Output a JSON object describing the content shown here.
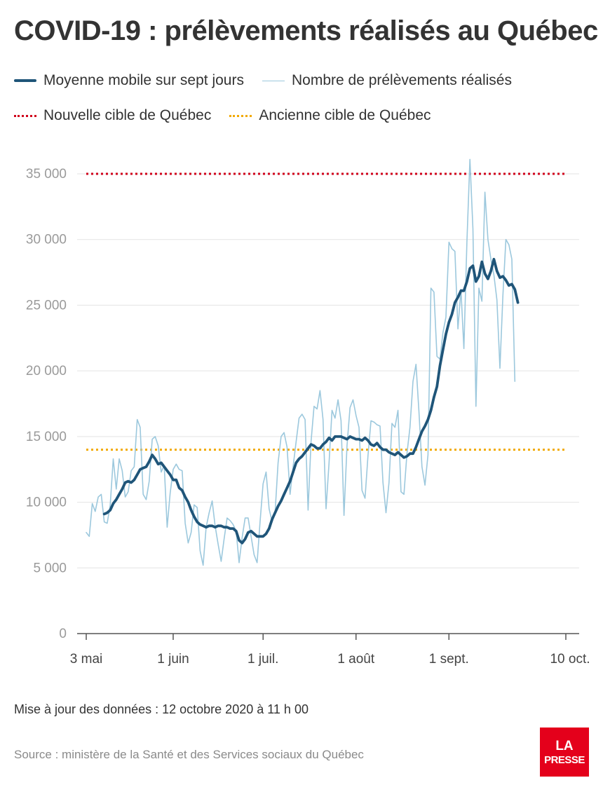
{
  "title": "COVID-19 : prélèvements réalisés au Québec",
  "legend": {
    "moving_average": "Moyenne mobile sur sept jours",
    "daily": "Nombre de prélèvements réalisés",
    "new_target": "Nouvelle cible de Québec",
    "old_target": "Ancienne cible de Québec"
  },
  "colors": {
    "moving_average": "#1f5579",
    "daily": "#9cc8dd",
    "new_target": "#d0021b",
    "old_target": "#f2a900",
    "grid": "#e3e3e3",
    "logo": "#e4001b"
  },
  "update_note": "Mise à jour des données : 12 octobre 2020 à 11 h 00",
  "source": "Source : ministère de la Santé et des Services sociaux du Québec",
  "logo": {
    "line1": "LA",
    "line2": "PRESSE"
  },
  "chart_data": {
    "type": "line",
    "ylim": [
      0,
      35000
    ],
    "y_ticks": [
      0,
      5000,
      10000,
      15000,
      20000,
      25000,
      30000,
      35000
    ],
    "y_tick_labels": [
      "0",
      "5 000",
      "10 000",
      "15 000",
      "20 000",
      "25 000",
      "30 000",
      "35 000"
    ],
    "x_ticks": [
      {
        "label": "3 mai",
        "date": "2020-05-03"
      },
      {
        "label": "1 juin",
        "date": "2020-06-01"
      },
      {
        "label": "1 juil.",
        "date": "2020-07-01"
      },
      {
        "label": "1 août",
        "date": "2020-08-01"
      },
      {
        "label": "1 sept.",
        "date": "2020-09-01"
      },
      {
        "label": "10 oct.",
        "date": "2020-10-10"
      }
    ],
    "x_range": [
      "2020-05-03",
      "2020-10-10"
    ],
    "reference_lines": [
      {
        "name": "Nouvelle cible de Québec",
        "value": 35000
      },
      {
        "name": "Ancienne cible de Québec",
        "value": 14000
      }
    ],
    "series": [
      {
        "name": "Nombre de prélèvements réalisés",
        "start_date": "2020-05-03",
        "values": [
          7700,
          7400,
          9900,
          9300,
          10400,
          10600,
          8500,
          8400,
          9800,
          13300,
          11000,
          13300,
          12400,
          10400,
          10800,
          12400,
          12700,
          16300,
          15700,
          10600,
          10200,
          11600,
          14800,
          15000,
          14300,
          12300,
          12800,
          8100,
          10700,
          12500,
          12900,
          12500,
          12400,
          8400,
          6900,
          7700,
          9800,
          9600,
          6300,
          5200,
          8100,
          9200,
          10100,
          8200,
          6800,
          5500,
          7200,
          8800,
          8600,
          8300,
          7800,
          5400,
          7300,
          8800,
          8800,
          7400,
          6000,
          5400,
          8500,
          11400,
          12300,
          9500,
          8500,
          9200,
          13000,
          15000,
          15300,
          14200,
          10600,
          12700,
          14600,
          16400,
          16700,
          16300,
          9400,
          14600,
          17300,
          17100,
          18500,
          16300,
          9500,
          13000,
          17000,
          16400,
          17800,
          16200,
          9000,
          14300,
          17200,
          17800,
          16600,
          15700,
          10900,
          10300,
          13600,
          16200,
          16100,
          15900,
          15800,
          11500,
          9200,
          11500,
          16000,
          15700,
          17000,
          10800,
          10600,
          13700,
          15700,
          19200,
          20500,
          16900,
          12700,
          11300,
          13600,
          26300,
          26000,
          21100,
          20900,
          22900,
          24100,
          29800,
          29300,
          29100,
          23200,
          26200,
          21700,
          29800,
          36100,
          30800,
          17300,
          26300,
          25300,
          33600,
          30000,
          28500,
          27300,
          25400,
          20200,
          25700,
          30000,
          29600,
          28500,
          19200
        ]
      },
      {
        "name": "Moyenne mobile sur sept jours",
        "start_date": "2020-05-09",
        "values": [
          9100,
          9200,
          9400,
          9900,
          10200,
          10600,
          11000,
          11500,
          11600,
          11500,
          11700,
          12100,
          12500,
          12600,
          12700,
          13100,
          13600,
          13300,
          12900,
          13000,
          12700,
          12400,
          12100,
          11700,
          11700,
          11100,
          10900,
          10400,
          10000,
          9400,
          8900,
          8500,
          8300,
          8200,
          8100,
          8200,
          8200,
          8100,
          8200,
          8200,
          8100,
          8100,
          8000,
          8000,
          7800,
          7100,
          6900,
          7200,
          7700,
          7800,
          7600,
          7400,
          7400,
          7400,
          7600,
          8000,
          8700,
          9200,
          9700,
          10100,
          10600,
          11100,
          11600,
          12300,
          13000,
          13300,
          13500,
          13800,
          14100,
          14400,
          14300,
          14100,
          14100,
          14400,
          14600,
          14900,
          14700,
          15000,
          15000,
          15000,
          14900,
          14800,
          15000,
          14900,
          14800,
          14800,
          14700,
          14900,
          14700,
          14400,
          14300,
          14500,
          14200,
          14000,
          14000,
          13800,
          13700,
          13600,
          13800,
          13600,
          13400,
          13500,
          13700,
          13700,
          14200,
          14800,
          15400,
          15800,
          16300,
          17000,
          18000,
          18800,
          20400,
          21600,
          22800,
          23700,
          24300,
          25200,
          25600,
          26100,
          26100,
          26800,
          27800,
          28000,
          26800,
          27200,
          28300,
          27400,
          27000,
          27600,
          28500,
          27600,
          27100,
          27200,
          26900,
          26500,
          26600,
          26200,
          25200
        ]
      }
    ]
  }
}
